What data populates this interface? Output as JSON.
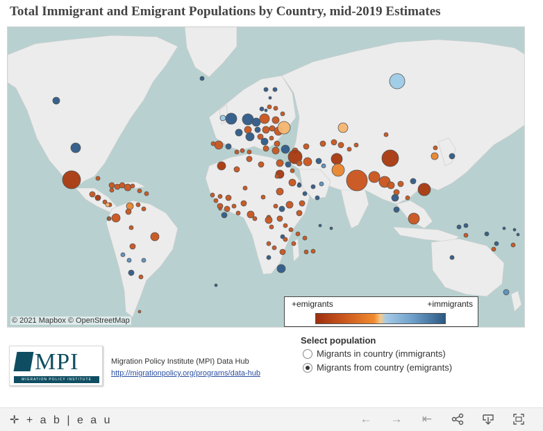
{
  "title": "Total Immigrant and Emigrant Populations by Country, mid-2019 Estimates",
  "map": {
    "attribution": "© 2021 Mapbox © OpenStreetMap",
    "ocean_color": "#b8d1d0",
    "land_color": "#ececec",
    "legend": {
      "left_label": "+emigrants",
      "right_label": "+immigrants"
    },
    "palette": {
      "emig_strong": "#a8390f",
      "emig_mid": "#c9541c",
      "emig_light": "#e9852f",
      "emig_pale": "#f6b670",
      "imm_pale": "#9ecbe6",
      "imm_mid": "#5c8fbd",
      "imm_strong": "#2e5b88"
    }
  },
  "source": {
    "logo_text": "MPI",
    "logo_sub": "MIGRATION POLICY INSTITUTE",
    "name": "Migration Policy Institute (MPI) Data Hub",
    "link": "http://migrationpolicy.org/programs/data-hub"
  },
  "selector": {
    "title": "Select population",
    "options": [
      {
        "label": "Migrants in country (immigrants)",
        "selected": false
      },
      {
        "label": "Migrants from country (emigrants)",
        "selected": true
      }
    ]
  },
  "toolbar": {
    "brand": "+ a b | e a u",
    "buttons": [
      "undo-icon",
      "redo-icon",
      "revert-icon",
      "share-icon",
      "download-icon",
      "fullscreen-icon"
    ]
  }
}
